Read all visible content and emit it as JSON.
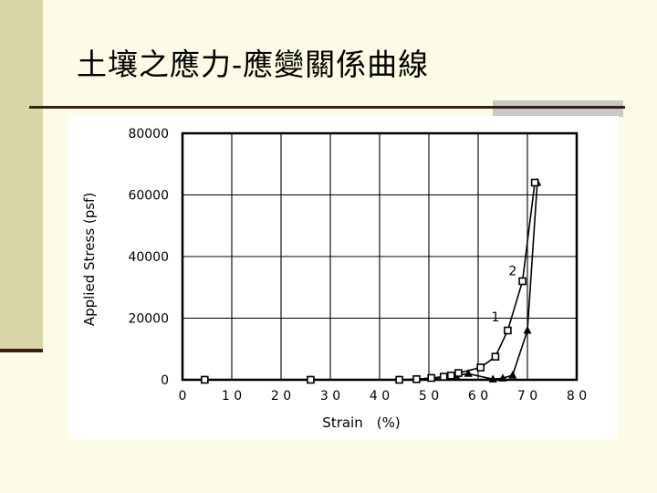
{
  "slide": {
    "title": "土壤之應力-應變關係曲線"
  },
  "colors": {
    "background": "#fbfbe6",
    "sidebar": "#d8d6a8",
    "rule": "#3a1f12",
    "rule_accent": "#c8c8c8",
    "chart_ink": "#000000"
  },
  "chart_data": {
    "type": "line",
    "title": "",
    "xlabel": "Strain　(%)",
    "ylabel": "Applied Stress (psf)",
    "xlim": [
      0,
      80
    ],
    "ylim": [
      0,
      80000
    ],
    "grid": true,
    "x_ticks": [
      0,
      10,
      20,
      30,
      40,
      50,
      60,
      70,
      80
    ],
    "x_tick_labels": [
      "0",
      "1 0",
      "2 0",
      "3 0",
      "4 0",
      "5 0",
      "6 0",
      "7 0",
      "8 0"
    ],
    "y_ticks": [
      0,
      20000,
      40000,
      60000,
      80000
    ],
    "y_tick_labels": [
      "0",
      "20000",
      "40000",
      "60000",
      "80000"
    ],
    "series": [
      {
        "name": "1",
        "marker": "triangle",
        "x": [
          4.5,
          26,
          44,
          47.5,
          50.5,
          54,
          55.5,
          58,
          63,
          65,
          67,
          70,
          72
        ],
        "y": [
          0,
          0,
          0,
          200,
          500,
          900,
          1400,
          2000,
          200,
          500,
          1500,
          16000,
          64000
        ]
      },
      {
        "name": "2",
        "marker": "square",
        "x": [
          4.5,
          26,
          44,
          47.5,
          50.5,
          53,
          54.5,
          56,
          60.5,
          63.5,
          66,
          69,
          71.5
        ],
        "y": [
          0,
          0,
          0,
          200,
          600,
          1000,
          1400,
          2200,
          4000,
          7500,
          16000,
          32000,
          64000
        ]
      }
    ],
    "annotations": [
      {
        "text": "1",
        "x": 63.5,
        "y": 19000
      },
      {
        "text": "2",
        "x": 67,
        "y": 34000
      }
    ]
  }
}
